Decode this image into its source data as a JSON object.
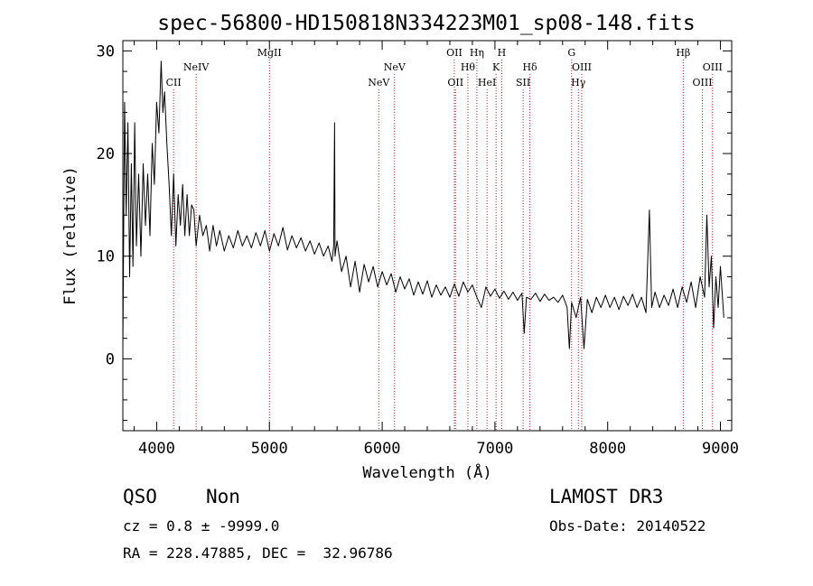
{
  "chart_data": {
    "type": "line",
    "title": "spec-56800-HD150818N334223M01_sp08-148.fits",
    "xlabel": "Wavelength (Å)",
    "ylabel": "Flux (relative)",
    "xlim": [
      3700,
      9100
    ],
    "ylim": [
      -7,
      31
    ],
    "xticks": [
      4000,
      5000,
      6000,
      7000,
      8000,
      9000
    ],
    "yticks": [
      0,
      10,
      20,
      30
    ],
    "series": [
      {
        "name": "spectrum",
        "points": [
          [
            3700,
            1
          ],
          [
            3715,
            25
          ],
          [
            3730,
            14
          ],
          [
            3745,
            23
          ],
          [
            3760,
            8
          ],
          [
            3775,
            19
          ],
          [
            3790,
            9
          ],
          [
            3805,
            23
          ],
          [
            3820,
            11
          ],
          [
            3840,
            18
          ],
          [
            3860,
            10
          ],
          [
            3880,
            19
          ],
          [
            3900,
            13
          ],
          [
            3920,
            18
          ],
          [
            3940,
            12
          ],
          [
            3960,
            21
          ],
          [
            3980,
            17
          ],
          [
            4000,
            25
          ],
          [
            4020,
            22
          ],
          [
            4040,
            29
          ],
          [
            4055,
            24
          ],
          [
            4070,
            26
          ],
          [
            4090,
            21
          ],
          [
            4110,
            17
          ],
          [
            4130,
            12
          ],
          [
            4150,
            18
          ],
          [
            4170,
            11
          ],
          [
            4190,
            16
          ],
          [
            4210,
            13
          ],
          [
            4230,
            17
          ],
          [
            4250,
            12
          ],
          [
            4270,
            16
          ],
          [
            4290,
            12
          ],
          [
            4310,
            15
          ],
          [
            4330,
            14.5
          ],
          [
            4350,
            11
          ],
          [
            4380,
            14
          ],
          [
            4410,
            12
          ],
          [
            4440,
            13
          ],
          [
            4470,
            10.5
          ],
          [
            4500,
            13
          ],
          [
            4530,
            11
          ],
          [
            4560,
            12.5
          ],
          [
            4600,
            10.5
          ],
          [
            4640,
            12
          ],
          [
            4680,
            10.8
          ],
          [
            4720,
            12.5
          ],
          [
            4760,
            11
          ],
          [
            4800,
            12
          ],
          [
            4840,
            10.8
          ],
          [
            4880,
            12.3
          ],
          [
            4920,
            11
          ],
          [
            4960,
            12.5
          ],
          [
            5000,
            10.5
          ],
          [
            5040,
            12.2
          ],
          [
            5080,
            11
          ],
          [
            5120,
            12.8
          ],
          [
            5160,
            10.6
          ],
          [
            5200,
            12
          ],
          [
            5240,
            10.8
          ],
          [
            5280,
            11.8
          ],
          [
            5320,
            10.5
          ],
          [
            5360,
            11.5
          ],
          [
            5400,
            10.2
          ],
          [
            5440,
            11.3
          ],
          [
            5480,
            10
          ],
          [
            5520,
            11
          ],
          [
            5555,
            9.5
          ],
          [
            5570,
            11
          ],
          [
            5578,
            23
          ],
          [
            5582,
            10
          ],
          [
            5600,
            11.5
          ],
          [
            5640,
            8.5
          ],
          [
            5680,
            10
          ],
          [
            5720,
            7
          ],
          [
            5760,
            9.5
          ],
          [
            5800,
            6.5
          ],
          [
            5840,
            9.2
          ],
          [
            5880,
            7.5
          ],
          [
            5920,
            9
          ],
          [
            5960,
            7
          ],
          [
            6000,
            8.5
          ],
          [
            6040,
            7.2
          ],
          [
            6080,
            8.3
          ],
          [
            6120,
            6.5
          ],
          [
            6160,
            8
          ],
          [
            6200,
            6.8
          ],
          [
            6240,
            7.8
          ],
          [
            6280,
            6.2
          ],
          [
            6320,
            7.5
          ],
          [
            6360,
            6.3
          ],
          [
            6400,
            7.6
          ],
          [
            6440,
            6
          ],
          [
            6480,
            7.2
          ],
          [
            6520,
            6.2
          ],
          [
            6560,
            7
          ],
          [
            6600,
            6
          ],
          [
            6640,
            7.3
          ],
          [
            6680,
            6.1
          ],
          [
            6720,
            7.5
          ],
          [
            6760,
            6.5
          ],
          [
            6800,
            7.2
          ],
          [
            6840,
            6
          ],
          [
            6880,
            5
          ],
          [
            6920,
            7
          ],
          [
            6960,
            6.1
          ],
          [
            7000,
            6.8
          ],
          [
            7040,
            5.9
          ],
          [
            7080,
            6.6
          ],
          [
            7120,
            5.8
          ],
          [
            7160,
            6.5
          ],
          [
            7200,
            5.7
          ],
          [
            7240,
            6.4
          ],
          [
            7260,
            2.5
          ],
          [
            7280,
            6
          ],
          [
            7320,
            5.8
          ],
          [
            7360,
            6.4
          ],
          [
            7400,
            5.6
          ],
          [
            7440,
            6.3
          ],
          [
            7480,
            5.7
          ],
          [
            7520,
            6
          ],
          [
            7560,
            5.5
          ],
          [
            7600,
            6.2
          ],
          [
            7640,
            5
          ],
          [
            7660,
            1
          ],
          [
            7680,
            5.5
          ],
          [
            7720,
            4
          ],
          [
            7760,
            6
          ],
          [
            7790,
            1
          ],
          [
            7820,
            5.8
          ],
          [
            7860,
            4.5
          ],
          [
            7900,
            6
          ],
          [
            7940,
            5
          ],
          [
            7980,
            6.2
          ],
          [
            8020,
            5
          ],
          [
            8060,
            6
          ],
          [
            8100,
            4.8
          ],
          [
            8140,
            6.1
          ],
          [
            8180,
            5.2
          ],
          [
            8220,
            6.3
          ],
          [
            8260,
            5
          ],
          [
            8300,
            6
          ],
          [
            8340,
            4.5
          ],
          [
            8370,
            14.5
          ],
          [
            8390,
            5
          ],
          [
            8420,
            6.5
          ],
          [
            8460,
            5
          ],
          [
            8500,
            6.2
          ],
          [
            8540,
            5.2
          ],
          [
            8580,
            6.8
          ],
          [
            8620,
            5
          ],
          [
            8660,
            7
          ],
          [
            8700,
            5.5
          ],
          [
            8740,
            7.5
          ],
          [
            8780,
            5
          ],
          [
            8820,
            8
          ],
          [
            8860,
            6
          ],
          [
            8880,
            14
          ],
          [
            8900,
            7
          ],
          [
            8920,
            10
          ],
          [
            8940,
            3
          ],
          [
            8960,
            8
          ],
          [
            8980,
            5
          ],
          [
            9000,
            9
          ],
          [
            9030,
            4
          ]
        ]
      }
    ],
    "line_markers": [
      {
        "label": "CII",
        "x": 4150,
        "row": "low"
      },
      {
        "label": "NeIV",
        "x": 4350,
        "row": "mid"
      },
      {
        "label": "MgII",
        "x": 5000,
        "row": "top"
      },
      {
        "label": "NeV",
        "x": 5970,
        "row": "low"
      },
      {
        "label": "NeV",
        "x": 6110,
        "row": "mid"
      },
      {
        "label": "OII",
        "x": 6640,
        "row": "top"
      },
      {
        "label": "OII",
        "x": 6650,
        "row": "low"
      },
      {
        "label": "Hθ",
        "x": 6760,
        "row": "mid"
      },
      {
        "label": "Hη",
        "x": 6840,
        "row": "top"
      },
      {
        "label": "HeI",
        "x": 6930,
        "row": "low"
      },
      {
        "label": "K",
        "x": 7010,
        "row": "mid"
      },
      {
        "label": "H",
        "x": 7060,
        "row": "top"
      },
      {
        "label": "SII",
        "x": 7250,
        "row": "low"
      },
      {
        "label": "Hδ",
        "x": 7310,
        "row": "mid"
      },
      {
        "label": "G",
        "x": 7680,
        "row": "top"
      },
      {
        "label": "Hγ",
        "x": 7740,
        "row": "low"
      },
      {
        "label": "OIII",
        "x": 7770,
        "row": "mid"
      },
      {
        "label": "Hβ",
        "x": 8670,
        "row": "top"
      },
      {
        "label": "OIII",
        "x": 8840,
        "row": "low"
      },
      {
        "label": "OIII",
        "x": 8930,
        "row": "mid"
      }
    ]
  },
  "info": {
    "class": "QSO",
    "subclass": "Non",
    "survey": "LAMOST DR3",
    "cz": "cz = 0.8 ± -9999.0",
    "obs_date": "Obs-Date: 20140522",
    "coords": "RA = 228.47885, DEC =  32.96786"
  }
}
